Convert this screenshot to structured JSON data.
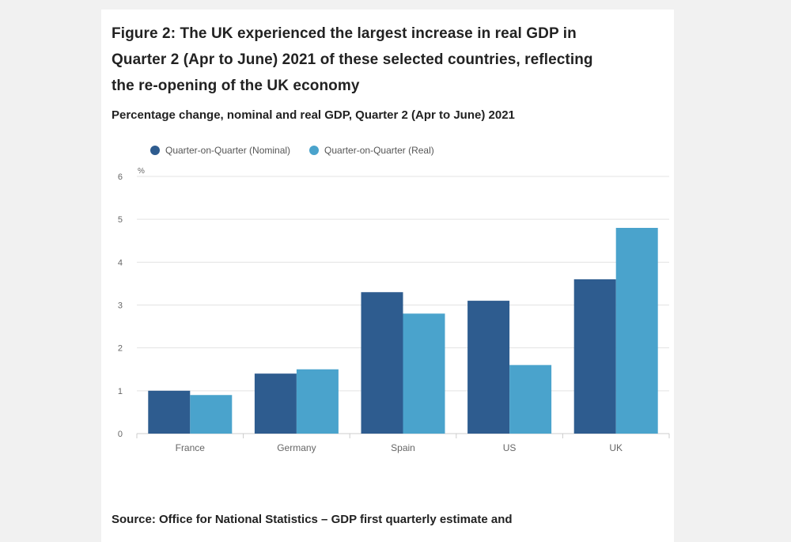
{
  "figure": {
    "title": "Figure 2: The UK experienced the largest increase in real GDP in Quarter 2 (Apr to June) 2021 of these selected countries, reflecting the re-opening of the UK economy",
    "subtitle": "Percentage change, nominal and real GDP, Quarter 2 (Apr to June) 2021",
    "source": "Source: Office for National Statistics – GDP first quarterly estimate and"
  },
  "colors": {
    "nominal": "#2e5c8f",
    "real": "#4aa3cc",
    "grid": "#e3e3e3",
    "axis": "#cccccc",
    "tick_text": "#666666"
  },
  "chart_data": {
    "type": "bar",
    "title": "Percentage change, nominal and real GDP, Quarter 2 (Apr to June) 2021",
    "ylabel": "%",
    "xlabel": "",
    "ylim": [
      0,
      6
    ],
    "yticks": [
      "0",
      "1",
      "2",
      "3",
      "4",
      "5",
      "6"
    ],
    "categories": [
      "France",
      "Germany",
      "Spain",
      "US",
      "UK"
    ],
    "series": [
      {
        "name": "Quarter-on-Quarter (Nominal)",
        "values": [
          1.0,
          1.4,
          3.3,
          3.1,
          3.6
        ]
      },
      {
        "name": "Quarter-on-Quarter (Real)",
        "values": [
          0.9,
          1.5,
          2.8,
          1.6,
          4.8
        ]
      }
    ],
    "legend_position": "top-left",
    "grid": true
  }
}
